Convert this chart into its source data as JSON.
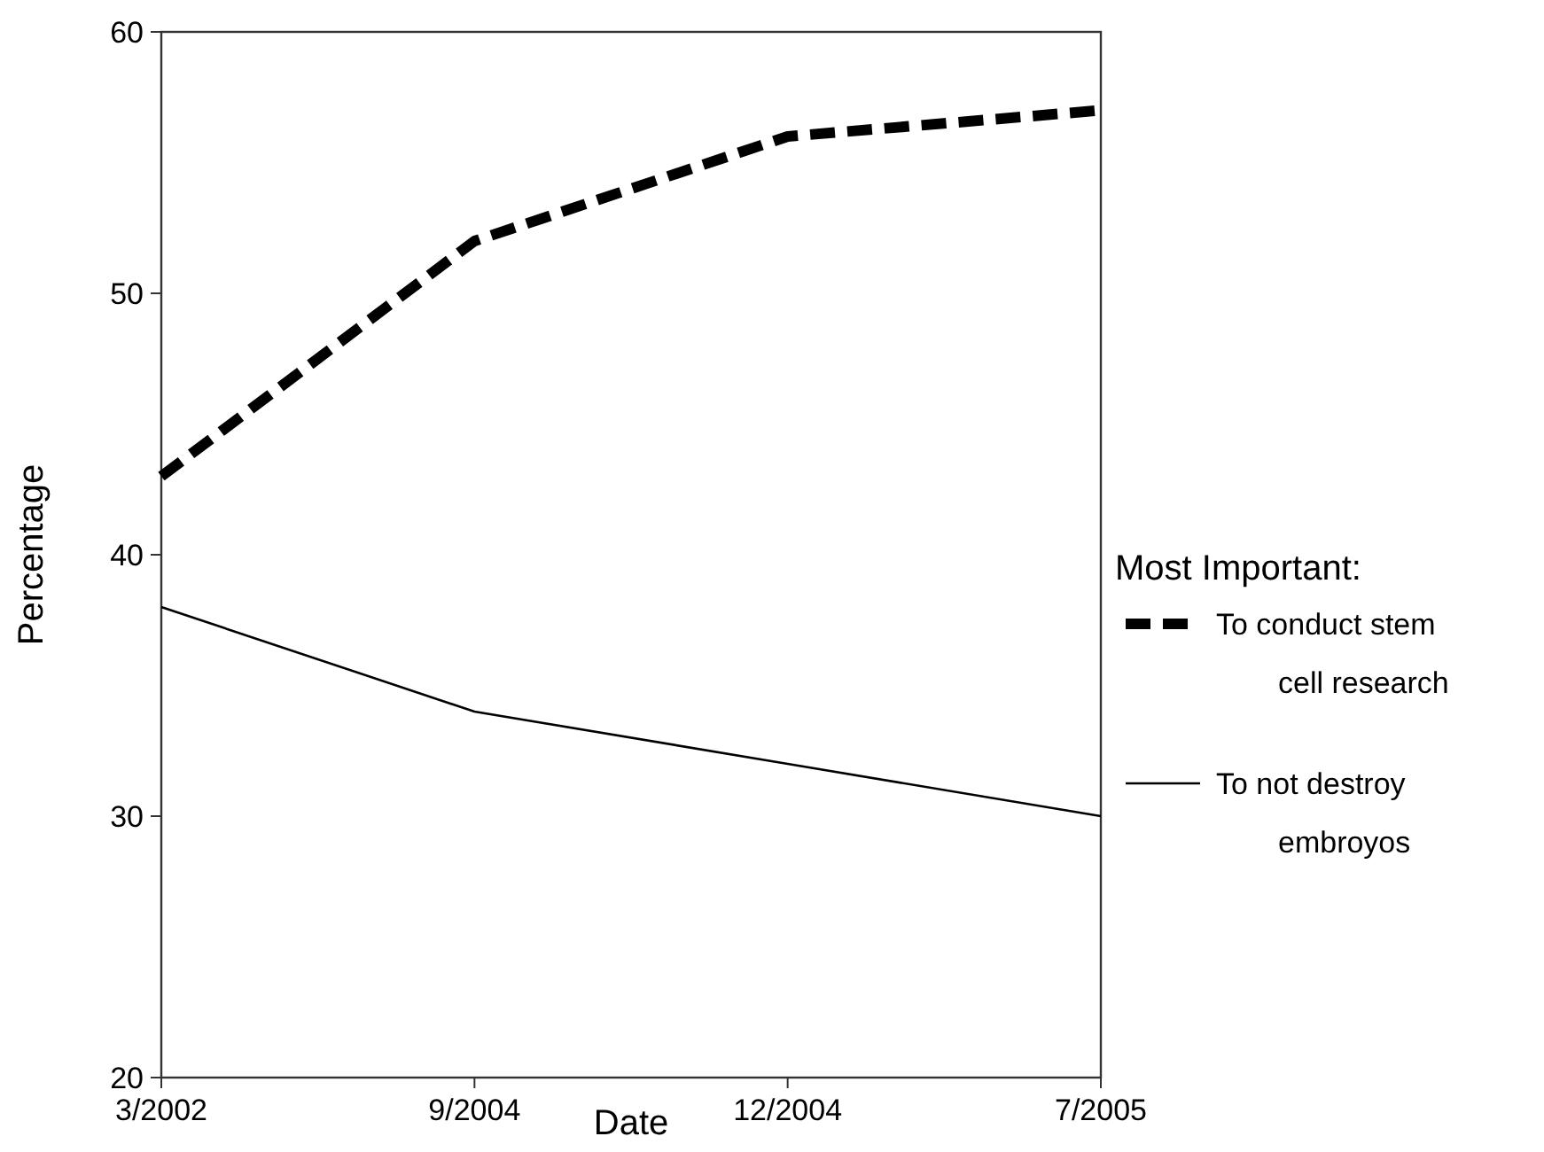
{
  "chart_data": {
    "type": "line",
    "xlabel": "Date",
    "ylabel": "Percentage",
    "legend_title": "Most Important:",
    "legend": "right",
    "categories": [
      "3/2002",
      "9/2004",
      "12/2004",
      "7/2005"
    ],
    "ylim": [
      20,
      60
    ],
    "yticks": [
      20,
      30,
      40,
      50,
      60
    ],
    "grid": false,
    "series": [
      {
        "name": "To conduct stem cell research",
        "color": "#000000",
        "values": [
          43,
          52,
          56,
          57
        ],
        "line_style": "dashed"
      },
      {
        "name": "To not destroy embroyos",
        "color": "#000000",
        "values": [
          38,
          34,
          32,
          30
        ],
        "line_style": "solid"
      }
    ]
  }
}
